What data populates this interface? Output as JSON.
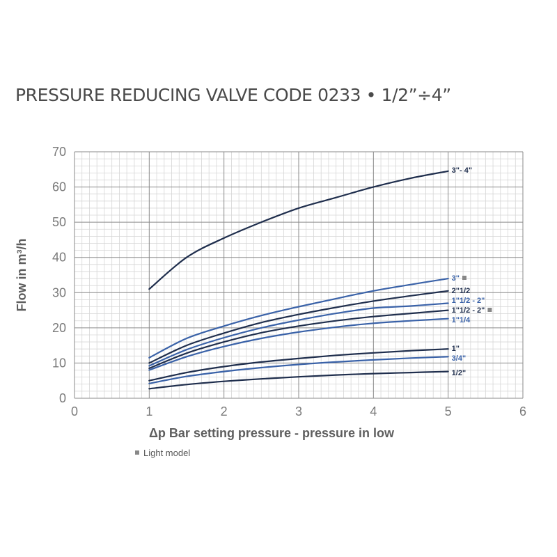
{
  "chart_data": {
    "type": "line",
    "title": "PRESSURE REDUCING VALVE CODE 0233 • 1/2”÷4”",
    "xlabel": "Δp Bar setting pressure - pressure in low",
    "ylabel": "Flow in m³/h",
    "xlim": [
      0,
      6
    ],
    "ylim": [
      0,
      70
    ],
    "xticks": [
      "0",
      "1",
      "2",
      "3",
      "4",
      "5",
      "6"
    ],
    "yticks": [
      "0",
      "10",
      "20",
      "30",
      "40",
      "50",
      "60",
      "70"
    ],
    "grid": true,
    "x": [
      1,
      1.5,
      2,
      2.5,
      3,
      3.5,
      4,
      4.5,
      5
    ],
    "series": [
      {
        "name": "3\"- 4\"",
        "light": false,
        "color": "#1f2e4d",
        "values": [
          31,
          40,
          45.5,
          50,
          54,
          57,
          60,
          62.5,
          64.5
        ]
      },
      {
        "name": "3\"",
        "light": true,
        "color": "#3a62a8",
        "values": [
          11.5,
          17,
          20.5,
          23.5,
          26,
          28.3,
          30.5,
          32.3,
          34
        ]
      },
      {
        "name": "2\"1/2",
        "light": false,
        "color": "#1f2e4d",
        "values": [
          10,
          15,
          18.5,
          21.5,
          23.8,
          25.8,
          27.6,
          29.1,
          30.5
        ]
      },
      {
        "name": "1\"1/2 - 2\"",
        "light": false,
        "color": "#3a62a8",
        "values": [
          9.2,
          13.8,
          17.2,
          20,
          22.2,
          24.1,
          25.6,
          26.2,
          27
        ]
      },
      {
        "name": "1\"1/2 - 2\"",
        "light": true,
        "color": "#1f2e4d",
        "values": [
          8.5,
          12.8,
          16,
          18.6,
          20.5,
          22,
          23.2,
          24.1,
          25
        ]
      },
      {
        "name": "1\"1/4",
        "light": false,
        "color": "#3a62a8",
        "values": [
          8,
          11.8,
          14.7,
          17,
          18.8,
          20.2,
          21.3,
          22,
          22.6
        ]
      },
      {
        "name": "1\"",
        "light": false,
        "color": "#1f2e4d",
        "values": [
          5,
          7.3,
          9,
          10.3,
          11.3,
          12.2,
          12.9,
          13.5,
          14
        ]
      },
      {
        "name": "3/4\"",
        "light": false,
        "color": "#3a62a8",
        "values": [
          4.2,
          6.2,
          7.6,
          8.7,
          9.6,
          10.3,
          10.9,
          11.4,
          11.8
        ]
      },
      {
        "name": "1/2\"",
        "light": false,
        "color": "#1f2e4d",
        "values": [
          2.7,
          3.9,
          4.8,
          5.5,
          6.1,
          6.6,
          7,
          7.3,
          7.6
        ]
      }
    ]
  },
  "legend": {
    "marker": "■",
    "text": "Light model"
  }
}
